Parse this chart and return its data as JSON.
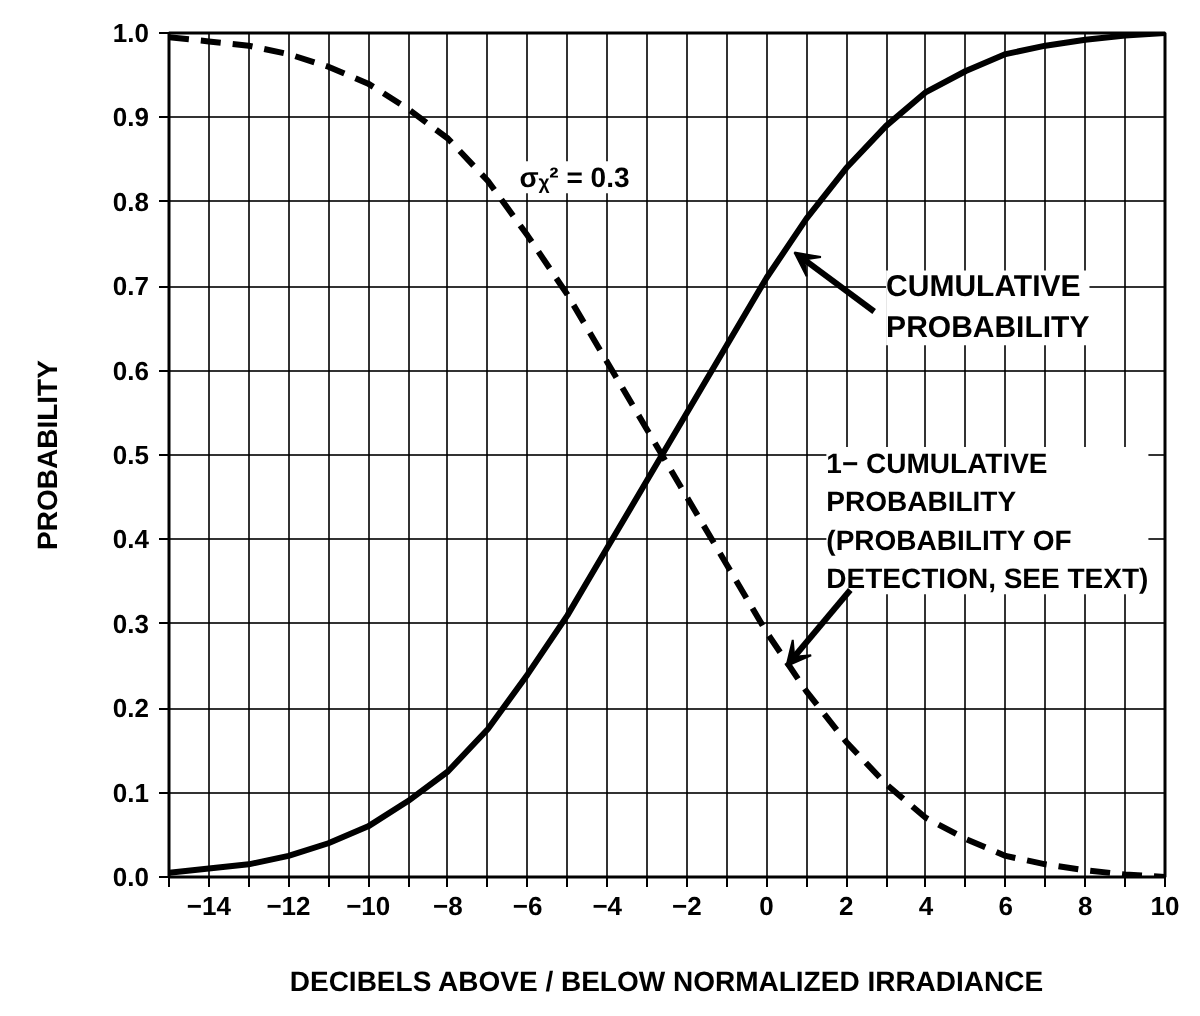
{
  "chart_data": {
    "type": "line",
    "xlabel": "DECIBELS ABOVE / BELOW NORMALIZED IRRADIANCE",
    "ylabel": "PROBABILITY",
    "x": [
      -15,
      -14,
      -13,
      -12,
      -11,
      -10,
      -9,
      -8,
      -7,
      -6,
      -5,
      -4,
      -3,
      -2,
      -1,
      0,
      1,
      2,
      3,
      4,
      5,
      6,
      7,
      8,
      9,
      10
    ],
    "series": [
      {
        "color": "#000000",
        "line_style": "solid",
        "values": [
          0.005,
          0.01,
          0.015,
          0.025,
          0.04,
          0.06,
          0.09,
          0.125,
          0.175,
          0.24,
          0.31,
          0.39,
          0.47,
          0.55,
          0.63,
          0.71,
          0.78,
          0.84,
          0.89,
          0.93,
          0.955,
          0.975,
          0.985,
          0.992,
          0.997,
          1.0
        ]
      },
      {
        "color": "#000000",
        "line_style": "dashed",
        "values": [
          0.995,
          0.99,
          0.985,
          0.975,
          0.96,
          0.94,
          0.91,
          0.875,
          0.825,
          0.76,
          0.69,
          0.61,
          0.53,
          0.45,
          0.37,
          0.29,
          0.22,
          0.16,
          0.11,
          0.07,
          0.045,
          0.025,
          0.015,
          0.008,
          0.003,
          0.0
        ]
      }
    ],
    "xlim": [
      -15,
      10
    ],
    "ylim": [
      0,
      1
    ],
    "xticks": [
      {
        "value": -15,
        "label": null
      },
      -14,
      {
        "value": -13,
        "label": null
      },
      -12,
      {
        "value": -11,
        "label": null
      },
      -10,
      {
        "value": -9,
        "label": null
      },
      -8,
      {
        "value": -7,
        "label": null
      },
      -6,
      {
        "value": -5,
        "label": null
      },
      -4,
      {
        "value": -3,
        "label": null
      },
      -2,
      {
        "value": -1,
        "label": null
      },
      0,
      {
        "value": 1,
        "label": null
      },
      2,
      {
        "value": 3,
        "label": null
      },
      4,
      {
        "value": 5,
        "label": null
      },
      6,
      {
        "value": 7,
        "label": null
      },
      8,
      {
        "value": 9,
        "label": null
      },
      10
    ],
    "yticks": [
      {
        "value": 0,
        "label": "0.0"
      },
      0.1,
      0.2,
      0.3,
      0.4,
      0.5,
      0.6,
      0.7,
      0.8,
      0.9,
      {
        "value": 1,
        "label": "1.0"
      }
    ],
    "annotations": [
      "σᵪ² = 0.3",
      {
        "text": "CUMULATIVE\nPROBABILITY",
        "x": 0.7,
        "y": 0.74
      },
      {
        "text": "1− CUMULATIVE\nPROBABILITY\n(PROBABILITY OF\nDETECTION, SEE TEXT)",
        "x": 0.5,
        "y": 0.25
      }
    ],
    "grid": true
  }
}
